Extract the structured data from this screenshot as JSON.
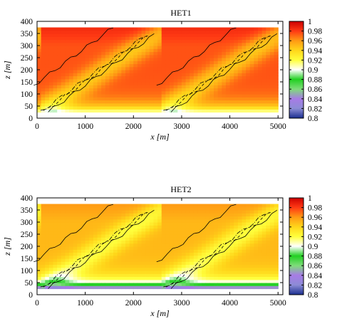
{
  "chart_data": [
    {
      "type": "heatmap",
      "title": "HET1",
      "xlabel": "x [m]",
      "ylabel": "z [m]",
      "xlim": [
        0,
        5100
      ],
      "ylim": [
        0,
        400
      ],
      "data_extent_x": [
        0,
        5000
      ],
      "data_extent_z": [
        25,
        375
      ],
      "x_ticks": [
        "0",
        "1000",
        "2000",
        "3000",
        "4000",
        "5000"
      ],
      "y_ticks": [
        "0",
        "50",
        "100",
        "150",
        "200",
        "250",
        "300",
        "350",
        "400"
      ],
      "colorbar": {
        "range": [
          0.8,
          1.0
        ],
        "ticks": [
          "0.8",
          "0.82",
          "0.84",
          "0.86",
          "0.88",
          "0.9",
          "0.92",
          "0.94",
          "0.96",
          "0.98",
          "1"
        ],
        "colormap": [
          "#1a2e8f",
          "#8c8cd6",
          "#a77be6",
          "#7fdc7a",
          "#22d022",
          "#ffffff",
          "#ffff3c",
          "#ffd61a",
          "#ff9a14",
          "#ff3a14",
          "#cc0000"
        ]
      },
      "field": {
        "periodic_length_x": 2500,
        "upstream_edge_x": [
          50,
          2600
        ],
        "near_surface_value": 0.9,
        "bulk_value": 0.975
      },
      "contour_levels_present": [
        "solid",
        "dashed",
        "dash-dot",
        "solid"
      ]
    },
    {
      "type": "heatmap",
      "title": "HET2",
      "xlabel": "x [m]",
      "ylabel": "z [m]",
      "xlim": [
        0,
        5100
      ],
      "ylim": [
        0,
        400
      ],
      "data_extent_x": [
        0,
        5000
      ],
      "data_extent_z": [
        25,
        375
      ],
      "x_ticks": [
        "0",
        "1000",
        "2000",
        "3000",
        "4000",
        "5000"
      ],
      "y_ticks": [
        "0",
        "50",
        "100",
        "150",
        "200",
        "250",
        "300",
        "350",
        "400"
      ],
      "colorbar": {
        "range": [
          0.8,
          1.0
        ],
        "ticks": [
          "0.8",
          "0.82",
          "0.84",
          "0.86",
          "0.88",
          "0.9",
          "0.92",
          "0.94",
          "0.96",
          "0.98",
          "1"
        ],
        "colormap": [
          "#1a2e8f",
          "#8c8cd6",
          "#a77be6",
          "#7fdc7a",
          "#22d022",
          "#ffffff",
          "#ffff3c",
          "#ffd61a",
          "#ff9a14",
          "#ff3a14",
          "#cc0000"
        ]
      },
      "field": {
        "periodic_length_x": 2500,
        "upstream_edge_x": [
          50,
          2600
        ],
        "near_surface_value": 0.82,
        "bulk_value": 0.95
      },
      "contour_levels_present": [
        "solid",
        "dashed",
        "dash-dot",
        "solid"
      ]
    }
  ]
}
